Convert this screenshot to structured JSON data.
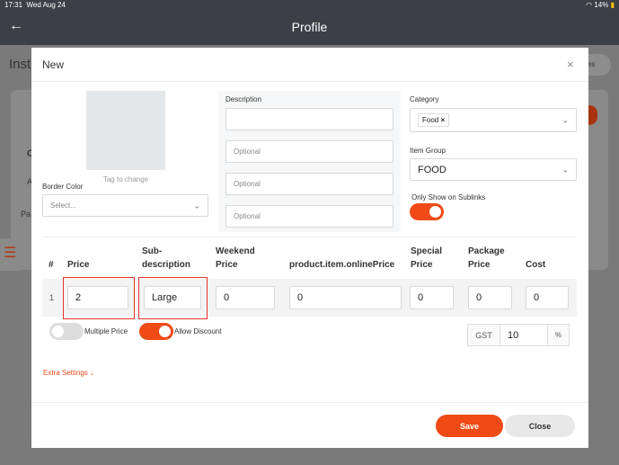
{
  "status_bar": {
    "time": "17:31",
    "date": "Wed Aug 24",
    "battery": "14%"
  },
  "header": {
    "title": "Profile"
  },
  "background": {
    "title_fragment": "Inst",
    "button_fragment": "les",
    "c_fragment": "C",
    "a_fragment": "A",
    "pa_fragment": "Pa"
  },
  "modal": {
    "title": "New",
    "image_hint": "Tag to change",
    "border_color": {
      "label": "Border Color",
      "placeholder": "Select..."
    },
    "description": {
      "label": "Description",
      "value": "",
      "optional_placeholders": [
        "Optional",
        "Optional",
        "Optional"
      ]
    },
    "category": {
      "label": "Category",
      "tags": [
        "Food"
      ]
    },
    "item_group": {
      "label": "Item Group",
      "value": "FOOD"
    },
    "sublinks": {
      "label": "Only Show on Sublinks",
      "on": true
    },
    "table": {
      "headers": {
        "num": "#",
        "price": "Price",
        "sub1": "Sub-",
        "sub2": "description",
        "weekend1": "Weekend",
        "weekend2": "Price",
        "online": "product.item.onlinePrice",
        "special1": "Special",
        "special2": "Price",
        "package1": "Package",
        "package2": "Price",
        "cost": "Cost"
      },
      "row": {
        "num": "1",
        "price": "2",
        "sub": "Large",
        "weekend": "0",
        "online": "0",
        "special": "0",
        "package": "0",
        "cost": "0"
      }
    },
    "multiple_price": {
      "label": "Multiple Price",
      "on": false
    },
    "allow_discount": {
      "label": "Allow Discount",
      "on": true
    },
    "gst": {
      "label": "GST",
      "value": "10",
      "unit": "%"
    },
    "extra_settings": "Extra Settings ↓",
    "save": "Save",
    "close": "Close",
    "accent": "#f04a16"
  }
}
